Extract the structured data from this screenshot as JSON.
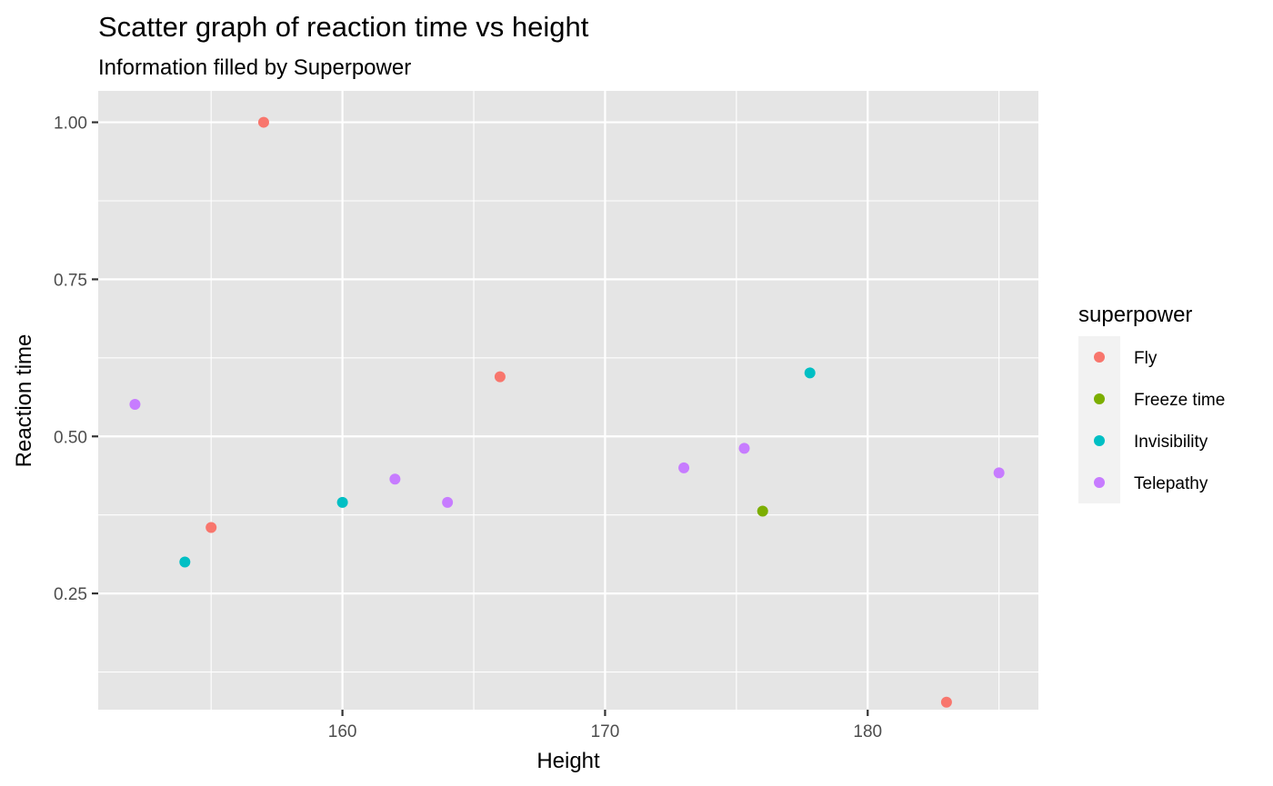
{
  "chart_data": {
    "type": "scatter",
    "title": "Scatter graph of reaction time vs height",
    "subtitle": "Information filled by Superpower",
    "xlabel": "Height",
    "ylabel": "Reaction time",
    "xlim": [
      150.7,
      186.5
    ],
    "ylim": [
      0.065,
      1.05
    ],
    "x_ticks": [
      160,
      170,
      180
    ],
    "x_tick_labels": [
      "160",
      "170",
      "180"
    ],
    "x_minor_ticks": [
      155,
      165,
      175,
      185
    ],
    "y_ticks": [
      0.25,
      0.5,
      0.75,
      1.0
    ],
    "y_tick_labels": [
      "0.25",
      "0.50",
      "0.75",
      "1.00"
    ],
    "y_minor_ticks": [
      0.125,
      0.375,
      0.625,
      0.875
    ],
    "grid": true,
    "legend_title": "superpower",
    "legend_position": "right",
    "series": [
      {
        "name": "Fly",
        "color": "#F8766D",
        "points": [
          {
            "x": 157,
            "y": 1.0
          },
          {
            "x": 155,
            "y": 0.355
          },
          {
            "x": 166,
            "y": 0.595
          },
          {
            "x": 183,
            "y": 0.077
          }
        ]
      },
      {
        "name": "Freeze time",
        "color": "#7CAE00",
        "points": [
          {
            "x": 176,
            "y": 0.381
          }
        ]
      },
      {
        "name": "Invisibility",
        "color": "#00BFC4",
        "points": [
          {
            "x": 154,
            "y": 0.3
          },
          {
            "x": 160,
            "y": 0.395
          },
          {
            "x": 177.8,
            "y": 0.601
          }
        ]
      },
      {
        "name": "Telepathy",
        "color": "#C77CFF",
        "points": [
          {
            "x": 152.1,
            "y": 0.551
          },
          {
            "x": 162,
            "y": 0.432
          },
          {
            "x": 164,
            "y": 0.395
          },
          {
            "x": 173,
            "y": 0.45
          },
          {
            "x": 175.3,
            "y": 0.481
          },
          {
            "x": 185,
            "y": 0.442
          }
        ]
      }
    ]
  }
}
